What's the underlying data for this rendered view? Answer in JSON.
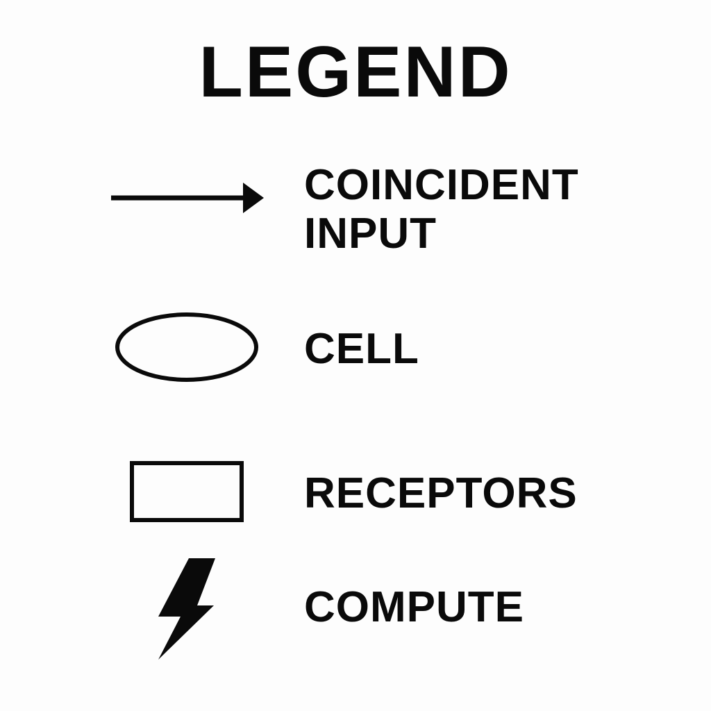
{
  "legend": {
    "title": "LEGEND",
    "items": [
      {
        "icon": "arrow-right-icon",
        "label_lines": [
          "COINCIDENT",
          "INPUT"
        ]
      },
      {
        "icon": "ellipse-icon",
        "label_lines": [
          "CELL"
        ]
      },
      {
        "icon": "rectangle-icon",
        "label_lines": [
          "RECEPTORS"
        ]
      },
      {
        "icon": "lightning-bolt-icon",
        "label_lines": [
          "COMPUTE"
        ]
      }
    ]
  },
  "colors": {
    "ink": "#0a0a0a",
    "background": "#fdfdfd"
  }
}
